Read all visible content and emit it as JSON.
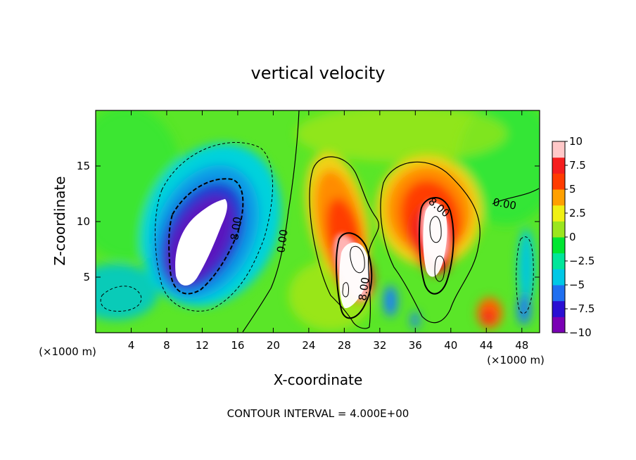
{
  "chart_data": {
    "type": "heatmap",
    "title": "vertical velocity",
    "xlabel": "X-coordinate",
    "ylabel": "Z-coordinate",
    "x_unit_label": "(×1000 m)",
    "y_unit_label": "(×1000 m)",
    "x_ticks": [
      4,
      8,
      12,
      16,
      20,
      24,
      28,
      32,
      36,
      40,
      44,
      48
    ],
    "y_ticks": [
      5,
      10,
      15
    ],
    "xlim": [
      0,
      50
    ],
    "ylim": [
      0,
      20
    ],
    "footer": "CONTOUR INTERVAL = 4.000E+00",
    "colorbar": {
      "ticks": [
        "10",
        "7.5",
        "5",
        "2.5",
        "0",
        "−2.5",
        "−5",
        "−7.5",
        "−10"
      ],
      "range": [
        -10,
        10
      ],
      "colors": [
        "#7a00b4",
        "#2a0fd2",
        "#1f6ff0",
        "#00c8e6",
        "#00e69a",
        "#00e632",
        "#9be61e",
        "#f0f014",
        "#ffa000",
        "#ff3c00",
        "#f51e1e",
        "#ffc8c8"
      ]
    },
    "contour_labels": [
      "0.00",
      "0.00",
      "8.00",
      "8.00",
      "8.00"
    ],
    "features": [
      {
        "name": "downdraft",
        "x": 11.5,
        "z": 9.5,
        "peak": -12
      },
      {
        "name": "updraft",
        "x": 29.0,
        "z": 6.0,
        "peak": 13
      },
      {
        "name": "updraft",
        "x": 38.0,
        "z": 8.5,
        "peak": 13
      },
      {
        "name": "updraft",
        "x": 44.0,
        "z": 1.8,
        "peak": 6
      }
    ]
  }
}
